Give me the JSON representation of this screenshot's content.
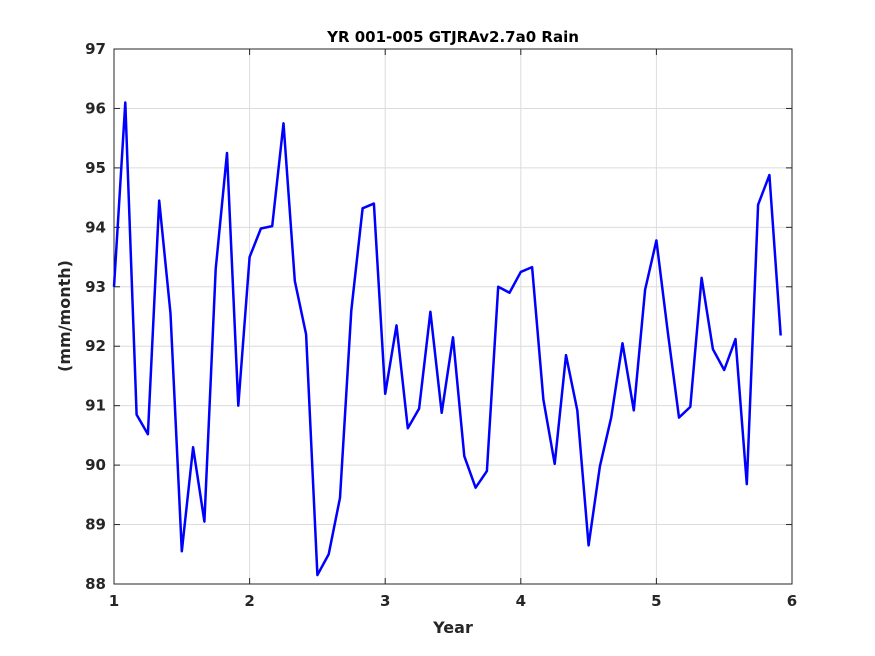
{
  "chart_data": {
    "type": "line",
    "title": "YR 001-005 GTJRAv2.7a0 Rain",
    "xlabel": "Year",
    "ylabel": "(mm/month)",
    "xlim": [
      1,
      6
    ],
    "ylim": [
      88,
      97
    ],
    "xticks": [
      "1",
      "2",
      "3",
      "4",
      "5",
      "6"
    ],
    "yticks": [
      "88",
      "89",
      "90",
      "91",
      "92",
      "93",
      "94",
      "95",
      "96",
      "97"
    ],
    "grid": true,
    "line_color": "#0000ff",
    "series": [
      {
        "x": [
          1.0,
          1.0833,
          1.1667,
          1.25,
          1.3333,
          1.4167,
          1.5,
          1.5833,
          1.6667,
          1.75,
          1.8333,
          1.9167,
          2.0,
          2.0833,
          2.1667,
          2.25,
          2.3333,
          2.4167,
          2.5,
          2.5833,
          2.6667,
          2.75,
          2.8333,
          2.9167,
          3.0,
          3.0833,
          3.1667,
          3.25,
          3.3333,
          3.4167,
          3.5,
          3.5833,
          3.6667,
          3.75,
          3.8333,
          3.9167,
          4.0,
          4.0833,
          4.1667,
          4.25,
          4.3333,
          4.4167,
          4.5,
          4.5833,
          4.6667,
          4.75,
          4.8333,
          4.9167,
          5.0,
          5.0833,
          5.1667,
          5.25,
          5.3333,
          5.4167,
          5.5,
          5.5833,
          5.6667,
          5.75,
          5.8333,
          5.9167
        ],
        "y": [
          93.0,
          96.1,
          90.85,
          90.52,
          94.45,
          92.55,
          88.55,
          90.3,
          89.05,
          93.3,
          95.25,
          91.0,
          93.5,
          93.98,
          94.02,
          95.75,
          93.1,
          92.2,
          88.15,
          88.5,
          89.45,
          92.6,
          94.32,
          94.4,
          91.2,
          92.35,
          90.62,
          90.95,
          92.58,
          90.88,
          92.15,
          90.15,
          89.62,
          89.9,
          93.0,
          92.9,
          93.25,
          93.33,
          91.1,
          90.02,
          91.85,
          90.92,
          88.65,
          89.98,
          90.8,
          92.05,
          90.92,
          92.95,
          93.78,
          92.25,
          90.8,
          90.98,
          93.15,
          91.95,
          91.6,
          92.12,
          89.68,
          94.38,
          94.88,
          92.18
        ]
      }
    ]
  }
}
